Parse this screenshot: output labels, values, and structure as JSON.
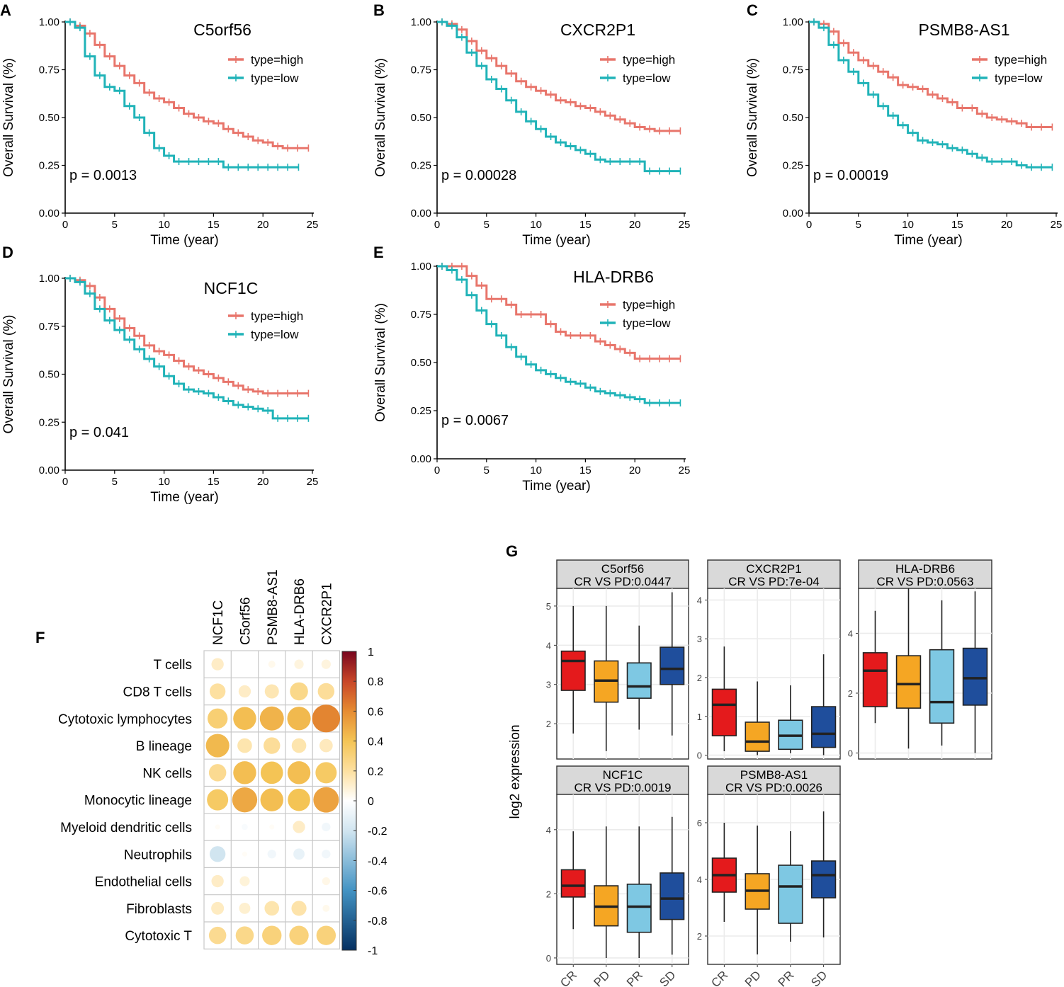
{
  "figure": {
    "panel_letters": [
      "A",
      "B",
      "C",
      "D",
      "E",
      "F",
      "G"
    ]
  },
  "colors": {
    "high": "#e8756b",
    "low": "#20b3b8",
    "box_cr": "#e41a1c",
    "box_pd": "#f5a623",
    "box_pr": "#7ec8e3",
    "box_sd": "#1f4e9c",
    "strip_bg": "#d9d9d9",
    "grid": "#ebebeb"
  },
  "km_common": {
    "ylabel": "Overall Survival (%)",
    "xlabel": "Time (year)",
    "legend_high": "type=high",
    "legend_low": "type=low",
    "x_ticks": [
      0,
      5,
      10,
      15,
      20,
      25
    ],
    "y_ticks": [
      "0.00",
      "0.25",
      "0.50",
      "0.75",
      "1.00"
    ],
    "xlim": [
      0,
      25
    ],
    "ylim": [
      0,
      1
    ]
  },
  "corr_common": {
    "colorbar_ticks": [
      "1",
      "0.8",
      "0.6",
      "0.4",
      "0.2",
      "0",
      "-0.2",
      "-0.4",
      "-0.6",
      "-0.8",
      "-1"
    ]
  },
  "box_common": {
    "ylabel": "log2 expression",
    "groups": [
      "CR",
      "PD",
      "PR",
      "SD"
    ]
  },
  "chart_data": [
    {
      "panel": "A",
      "type": "line",
      "title": "C5orf56",
      "p_value": "p = 0.0013",
      "series": [
        {
          "name": "type=high",
          "x": [
            0,
            1,
            2,
            3,
            4,
            5,
            6,
            7,
            8,
            9,
            10,
            11,
            12,
            13,
            14,
            15,
            16,
            17,
            18,
            19,
            20,
            21,
            22,
            23,
            24
          ],
          "y": [
            1,
            0.98,
            0.94,
            0.88,
            0.82,
            0.77,
            0.72,
            0.68,
            0.63,
            0.6,
            0.58,
            0.55,
            0.52,
            0.5,
            0.48,
            0.47,
            0.44,
            0.42,
            0.4,
            0.38,
            0.37,
            0.35,
            0.34,
            0.34,
            0.34
          ]
        },
        {
          "name": "type=low",
          "x": [
            0,
            1,
            2,
            3,
            4,
            5,
            6,
            7,
            8,
            9,
            10,
            11,
            12,
            13,
            14,
            15,
            16,
            17,
            18,
            19,
            20,
            21,
            22,
            23
          ],
          "y": [
            1,
            0.97,
            0.82,
            0.72,
            0.66,
            0.64,
            0.56,
            0.5,
            0.42,
            0.34,
            0.3,
            0.27,
            0.27,
            0.27,
            0.27,
            0.27,
            0.24,
            0.24,
            0.24,
            0.24,
            0.24,
            0.24,
            0.24,
            0.24
          ]
        }
      ]
    },
    {
      "panel": "B",
      "type": "line",
      "title": "CXCR2P1",
      "p_value": "p = 0.00028",
      "series": [
        {
          "name": "type=high",
          "x": [
            0,
            1,
            2,
            3,
            4,
            5,
            6,
            7,
            8,
            9,
            10,
            11,
            12,
            13,
            14,
            15,
            16,
            17,
            18,
            19,
            20,
            21,
            22,
            23,
            24
          ],
          "y": [
            1,
            0.99,
            0.96,
            0.9,
            0.85,
            0.81,
            0.77,
            0.73,
            0.69,
            0.66,
            0.64,
            0.62,
            0.59,
            0.58,
            0.56,
            0.55,
            0.53,
            0.51,
            0.49,
            0.47,
            0.45,
            0.44,
            0.43,
            0.43,
            0.43
          ]
        },
        {
          "name": "type=low",
          "x": [
            0,
            1,
            2,
            3,
            4,
            5,
            6,
            7,
            8,
            9,
            10,
            11,
            12,
            13,
            14,
            15,
            16,
            17,
            18,
            19,
            20,
            21,
            22,
            23,
            24
          ],
          "y": [
            1,
            0.98,
            0.92,
            0.84,
            0.77,
            0.7,
            0.65,
            0.59,
            0.53,
            0.48,
            0.44,
            0.4,
            0.37,
            0.35,
            0.33,
            0.31,
            0.28,
            0.27,
            0.27,
            0.27,
            0.27,
            0.22,
            0.22,
            0.22,
            0.22
          ]
        }
      ]
    },
    {
      "panel": "C",
      "type": "line",
      "title": "PSMB8-AS1",
      "p_value": "p = 0.00019",
      "series": [
        {
          "name": "type=high",
          "x": [
            0,
            1,
            2,
            3,
            4,
            5,
            6,
            7,
            8,
            9,
            10,
            11,
            12,
            13,
            14,
            15,
            16,
            17,
            18,
            19,
            20,
            21,
            22,
            23,
            24
          ],
          "y": [
            1,
            0.99,
            0.95,
            0.89,
            0.84,
            0.8,
            0.77,
            0.74,
            0.71,
            0.67,
            0.66,
            0.65,
            0.62,
            0.6,
            0.58,
            0.55,
            0.55,
            0.52,
            0.5,
            0.49,
            0.48,
            0.47,
            0.45,
            0.45,
            0.45
          ]
        },
        {
          "name": "type=low",
          "x": [
            0,
            1,
            2,
            3,
            4,
            5,
            6,
            7,
            8,
            9,
            10,
            11,
            12,
            13,
            14,
            15,
            16,
            17,
            18,
            19,
            20,
            21,
            22,
            23,
            24
          ],
          "y": [
            1,
            0.97,
            0.88,
            0.8,
            0.74,
            0.68,
            0.62,
            0.56,
            0.51,
            0.46,
            0.42,
            0.38,
            0.37,
            0.36,
            0.34,
            0.33,
            0.31,
            0.29,
            0.27,
            0.27,
            0.27,
            0.25,
            0.24,
            0.24,
            0.24
          ]
        }
      ]
    },
    {
      "panel": "D",
      "type": "line",
      "title": "NCF1C",
      "p_value": "p = 0.041",
      "series": [
        {
          "name": "type=high",
          "x": [
            0,
            1,
            2,
            3,
            4,
            5,
            6,
            7,
            8,
            9,
            10,
            11,
            12,
            13,
            14,
            15,
            16,
            17,
            18,
            19,
            20,
            21,
            22,
            23,
            24
          ],
          "y": [
            1,
            0.99,
            0.96,
            0.9,
            0.84,
            0.79,
            0.74,
            0.7,
            0.65,
            0.62,
            0.6,
            0.57,
            0.54,
            0.52,
            0.5,
            0.48,
            0.46,
            0.44,
            0.42,
            0.41,
            0.4,
            0.4,
            0.4,
            0.4,
            0.4
          ]
        },
        {
          "name": "type=low",
          "x": [
            0,
            1,
            2,
            3,
            4,
            5,
            6,
            7,
            8,
            9,
            10,
            11,
            12,
            13,
            14,
            15,
            16,
            17,
            18,
            19,
            20,
            21,
            22,
            23,
            24
          ],
          "y": [
            1,
            0.98,
            0.92,
            0.84,
            0.78,
            0.73,
            0.68,
            0.63,
            0.58,
            0.54,
            0.49,
            0.45,
            0.42,
            0.41,
            0.4,
            0.38,
            0.36,
            0.34,
            0.33,
            0.32,
            0.31,
            0.27,
            0.27,
            0.27,
            0.27
          ]
        }
      ]
    },
    {
      "panel": "E",
      "type": "line",
      "title": "HLA-DRB6",
      "p_value": "p = 0.0067",
      "series": [
        {
          "name": "type=high",
          "x": [
            0,
            1,
            2,
            3,
            4,
            5,
            6,
            7,
            8,
            9,
            10,
            11,
            12,
            13,
            14,
            15,
            16,
            17,
            18,
            19,
            20,
            21,
            22,
            23,
            24
          ],
          "y": [
            1,
            1,
            1,
            0.95,
            0.9,
            0.83,
            0.83,
            0.8,
            0.75,
            0.75,
            0.75,
            0.7,
            0.66,
            0.64,
            0.64,
            0.64,
            0.61,
            0.59,
            0.57,
            0.55,
            0.52,
            0.52,
            0.52,
            0.52,
            0.52
          ]
        },
        {
          "name": "type=low",
          "x": [
            0,
            1,
            2,
            3,
            4,
            5,
            6,
            7,
            8,
            9,
            10,
            11,
            12,
            13,
            14,
            15,
            16,
            17,
            18,
            19,
            20,
            21,
            22,
            23,
            24
          ],
          "y": [
            1,
            0.98,
            0.93,
            0.85,
            0.77,
            0.7,
            0.64,
            0.58,
            0.53,
            0.49,
            0.46,
            0.44,
            0.42,
            0.4,
            0.39,
            0.37,
            0.35,
            0.34,
            0.33,
            0.32,
            0.31,
            0.29,
            0.29,
            0.29,
            0.29
          ]
        }
      ]
    },
    {
      "panel": "F",
      "type": "heatmap",
      "columns": [
        "NCF1C",
        "C5orf56",
        "PSMB8-AS1",
        "HLA-DRB6",
        "CXCR2P1"
      ],
      "rows": [
        "T cells",
        "CD8 T cells",
        "Cytotoxic lymphocytes",
        "B lineage",
        "NK cells",
        "Monocytic lineage",
        "Myeloid dendritic cells",
        "Neutrophils",
        "Endothelial cells",
        "Fibroblasts",
        "Cytotoxic T"
      ],
      "values": [
        [
          0.12,
          0.0,
          0.04,
          0.07,
          0.07
        ],
        [
          0.2,
          0.12,
          0.16,
          0.26,
          0.22
        ],
        [
          0.32,
          0.42,
          0.46,
          0.44,
          0.62
        ],
        [
          0.44,
          0.17,
          0.22,
          0.17,
          0.14
        ],
        [
          0.24,
          0.42,
          0.4,
          0.42,
          0.36
        ],
        [
          0.36,
          0.5,
          0.42,
          0.4,
          0.52
        ],
        [
          0.02,
          -0.03,
          0.02,
          0.12,
          -0.06
        ],
        [
          -0.2,
          0.02,
          -0.06,
          -0.1,
          -0.06
        ],
        [
          0.12,
          0.08,
          0.0,
          0.0,
          0.05
        ],
        [
          0.13,
          0.1,
          0.17,
          0.18,
          0.04
        ],
        [
          0.24,
          0.26,
          0.3,
          0.3,
          0.3
        ]
      ],
      "colorbar": [
        -1,
        1
      ]
    },
    {
      "panel": "G",
      "type": "box",
      "facets": [
        {
          "title": "C5orf56",
          "sub": "CR VS PD:0.0447",
          "ylim": [
            1.1,
            5.45
          ],
          "yticks": [
            2,
            3,
            4,
            5
          ],
          "boxes": [
            [
              1.75,
              2.85,
              3.6,
              3.85,
              5.0
            ],
            [
              1.3,
              2.55,
              3.1,
              3.6,
              5.0
            ],
            [
              1.85,
              2.65,
              2.95,
              3.55,
              4.5
            ],
            [
              1.7,
              3.0,
              3.4,
              3.95,
              5.35
            ]
          ]
        },
        {
          "title": "CXCR2P1",
          "sub": "CR VS PD:7e-04",
          "ylim": [
            -0.1,
            4.3
          ],
          "yticks": [
            0,
            1,
            2,
            3,
            4
          ],
          "boxes": [
            [
              0.1,
              0.5,
              1.3,
              1.7,
              2.8
            ],
            [
              0.0,
              0.1,
              0.35,
              0.85,
              1.9
            ],
            [
              0.05,
              0.15,
              0.5,
              0.9,
              1.8
            ],
            [
              0.0,
              0.2,
              0.55,
              1.25,
              2.6
            ]
          ]
        },
        {
          "title": "HLA-DRB6",
          "sub": "CR VS PD:0.0563",
          "ylim": [
            -0.2,
            5.5
          ],
          "yticks": [
            0,
            2,
            4
          ],
          "boxes": [
            [
              1.0,
              1.55,
              2.75,
              3.35,
              4.75
            ],
            [
              0.15,
              1.5,
              2.3,
              3.25,
              5.5
            ],
            [
              0.25,
              1.0,
              1.7,
              3.45,
              5.1
            ],
            [
              0.0,
              1.6,
              2.5,
              3.5,
              5.4
            ]
          ]
        },
        {
          "title": "NCF1C",
          "sub": "CR VS PD:0.0019",
          "ylim": [
            -0.2,
            5.1
          ],
          "yticks": [
            0,
            2,
            4
          ],
          "boxes": [
            [
              0.9,
              1.9,
              2.25,
              2.75,
              3.95
            ],
            [
              0.0,
              1.0,
              1.6,
              2.25,
              4.1
            ],
            [
              0.0,
              0.8,
              1.6,
              2.3,
              4.1
            ],
            [
              0.1,
              1.2,
              1.85,
              2.65,
              4.4
            ]
          ]
        },
        {
          "title": "PSMB8-AS1",
          "sub": "CR VS PD:0.0026",
          "ylim": [
            1.0,
            7.0
          ],
          "yticks": [
            2,
            4,
            6
          ],
          "boxes": [
            [
              2.5,
              3.55,
              4.15,
              4.75,
              6.0
            ],
            [
              1.35,
              2.95,
              3.6,
              4.2,
              5.9
            ],
            [
              1.8,
              2.45,
              3.75,
              4.5,
              5.7
            ],
            [
              1.95,
              3.35,
              4.15,
              4.65,
              6.4
            ]
          ]
        }
      ]
    }
  ]
}
